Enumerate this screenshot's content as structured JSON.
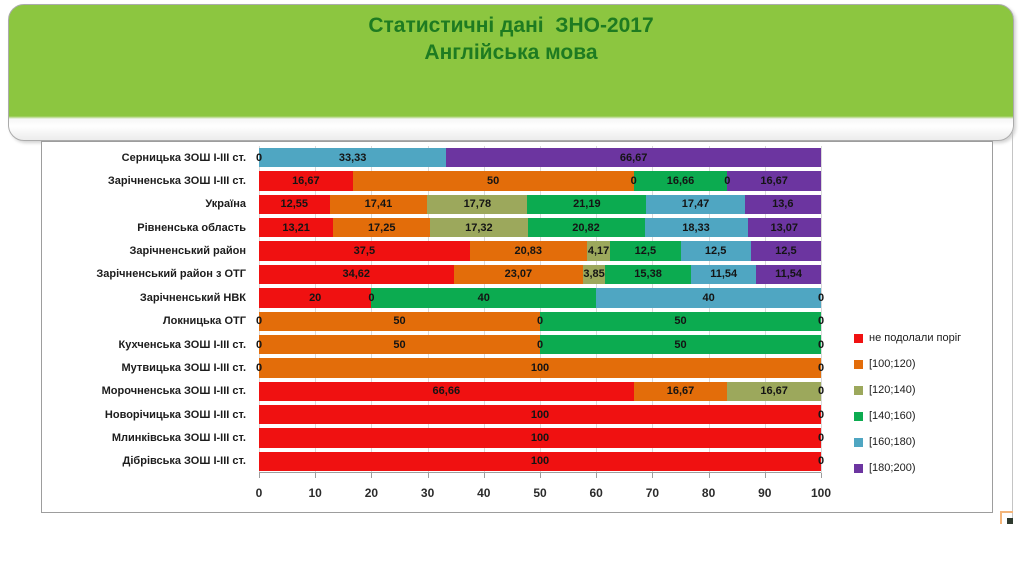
{
  "slide": {
    "title_line1": "Статистичні дані  ЗНО-2017",
    "title_line2": "Англійська мова",
    "title_color": "#1E7B21",
    "header_bg": "#8CC640"
  },
  "chart_data": {
    "type": "bar",
    "stacked": true,
    "orientation": "horizontal",
    "title": "Статистичні дані ЗНО-2017 Англійська мова",
    "xlim": [
      0,
      100
    ],
    "x_ticks": [
      0,
      10,
      20,
      30,
      40,
      50,
      60,
      70,
      80,
      90,
      100
    ],
    "grid": true,
    "legend_position": "right",
    "series": [
      {
        "name": "не подолали поріг",
        "color": "#F01111"
      },
      {
        "name": "[100;120)",
        "color": "#E36D0A"
      },
      {
        "name": "[120;140)",
        "color": "#9CA85C"
      },
      {
        "name": "[140;160)",
        "color": "#0CAB50"
      },
      {
        "name": "[160;180)",
        "color": "#4FA6C2"
      },
      {
        "name": "[180;200)",
        "color": "#6C35A0"
      }
    ],
    "rows": [
      {
        "category": "Серницька ЗОШ І-ІІІ ст.",
        "values": [
          0,
          0,
          0,
          0,
          33.33,
          66.67
        ],
        "labels": [
          "0",
          "",
          "",
          "",
          "33,33",
          "66,67"
        ]
      },
      {
        "category": "Зарічненська  ЗОШ І-ІІІ ст.",
        "values": [
          16.67,
          50,
          0,
          16.66,
          0,
          16.67
        ],
        "labels": [
          "16,67",
          "50",
          "0",
          "16,66",
          "0",
          "16,67"
        ]
      },
      {
        "category": "Україна",
        "values": [
          12.55,
          17.41,
          17.78,
          21.19,
          17.47,
          13.6
        ],
        "labels": [
          "12,55",
          "17,41",
          "17,78",
          "21,19",
          "17,47",
          "13,6"
        ]
      },
      {
        "category": "Рівненська  область",
        "values": [
          13.21,
          17.25,
          17.32,
          20.82,
          18.33,
          13.07
        ],
        "labels": [
          "13,21",
          "17,25",
          "17,32",
          "20,82",
          "18,33",
          "13,07"
        ]
      },
      {
        "category": "Зарічненський  район",
        "values": [
          37.5,
          20.83,
          4.17,
          12.5,
          12.5,
          12.5
        ],
        "labels": [
          "37,5",
          "20,83",
          "4,17",
          "12,5",
          "12,5",
          "12,5"
        ]
      },
      {
        "category": "Зарічненський  район з ОТГ",
        "values": [
          34.62,
          23.07,
          3.85,
          15.38,
          11.54,
          11.54
        ],
        "labels": [
          "34,62",
          "23,07",
          "3,85",
          "15,38",
          "11,54",
          "11,54"
        ]
      },
      {
        "category": "Зарічненський  НВК",
        "values": [
          20,
          0,
          0,
          40,
          40,
          0
        ],
        "labels": [
          "20",
          "0",
          "",
          "40",
          "40",
          "0"
        ]
      },
      {
        "category": "Локницька  ОТГ",
        "values": [
          0,
          50,
          0,
          50,
          0,
          0
        ],
        "labels": [
          "0",
          "50",
          "0",
          "50",
          "0",
          ""
        ]
      },
      {
        "category": "Кухченська  ЗОШ І-ІІІ ст.",
        "values": [
          0,
          50,
          0,
          50,
          0,
          0
        ],
        "labels": [
          "0",
          "50",
          "0",
          "50",
          "0",
          ""
        ]
      },
      {
        "category": "Мутвицька  ЗОШ І-ІІІ ст.",
        "values": [
          0,
          100,
          0,
          0,
          0,
          0
        ],
        "labels": [
          "0",
          "100",
          "0",
          "",
          "",
          ""
        ]
      },
      {
        "category": "Морочненська  ЗОШ І-ІІІ ст.",
        "values": [
          66.66,
          16.67,
          16.67,
          0,
          0,
          0
        ],
        "labels": [
          "66,66",
          "16,67",
          "16,67",
          "0",
          "",
          ""
        ]
      },
      {
        "category": "Новорічицька  ЗОШ І-ІІІ ст.",
        "values": [
          100,
          0,
          0,
          0,
          0,
          0
        ],
        "labels": [
          "100",
          "0",
          "",
          "",
          "",
          ""
        ]
      },
      {
        "category": "Млинківська  ЗОШ І-ІІІ ст.",
        "values": [
          100,
          0,
          0,
          0,
          0,
          0
        ],
        "labels": [
          "100",
          "0",
          "",
          "",
          "",
          ""
        ]
      },
      {
        "category": "Дібрівська  ЗОШ І-ІІІ ст.",
        "values": [
          100,
          0,
          0,
          0,
          0,
          0
        ],
        "labels": [
          "100",
          "0",
          "",
          "",
          "",
          ""
        ]
      }
    ]
  }
}
